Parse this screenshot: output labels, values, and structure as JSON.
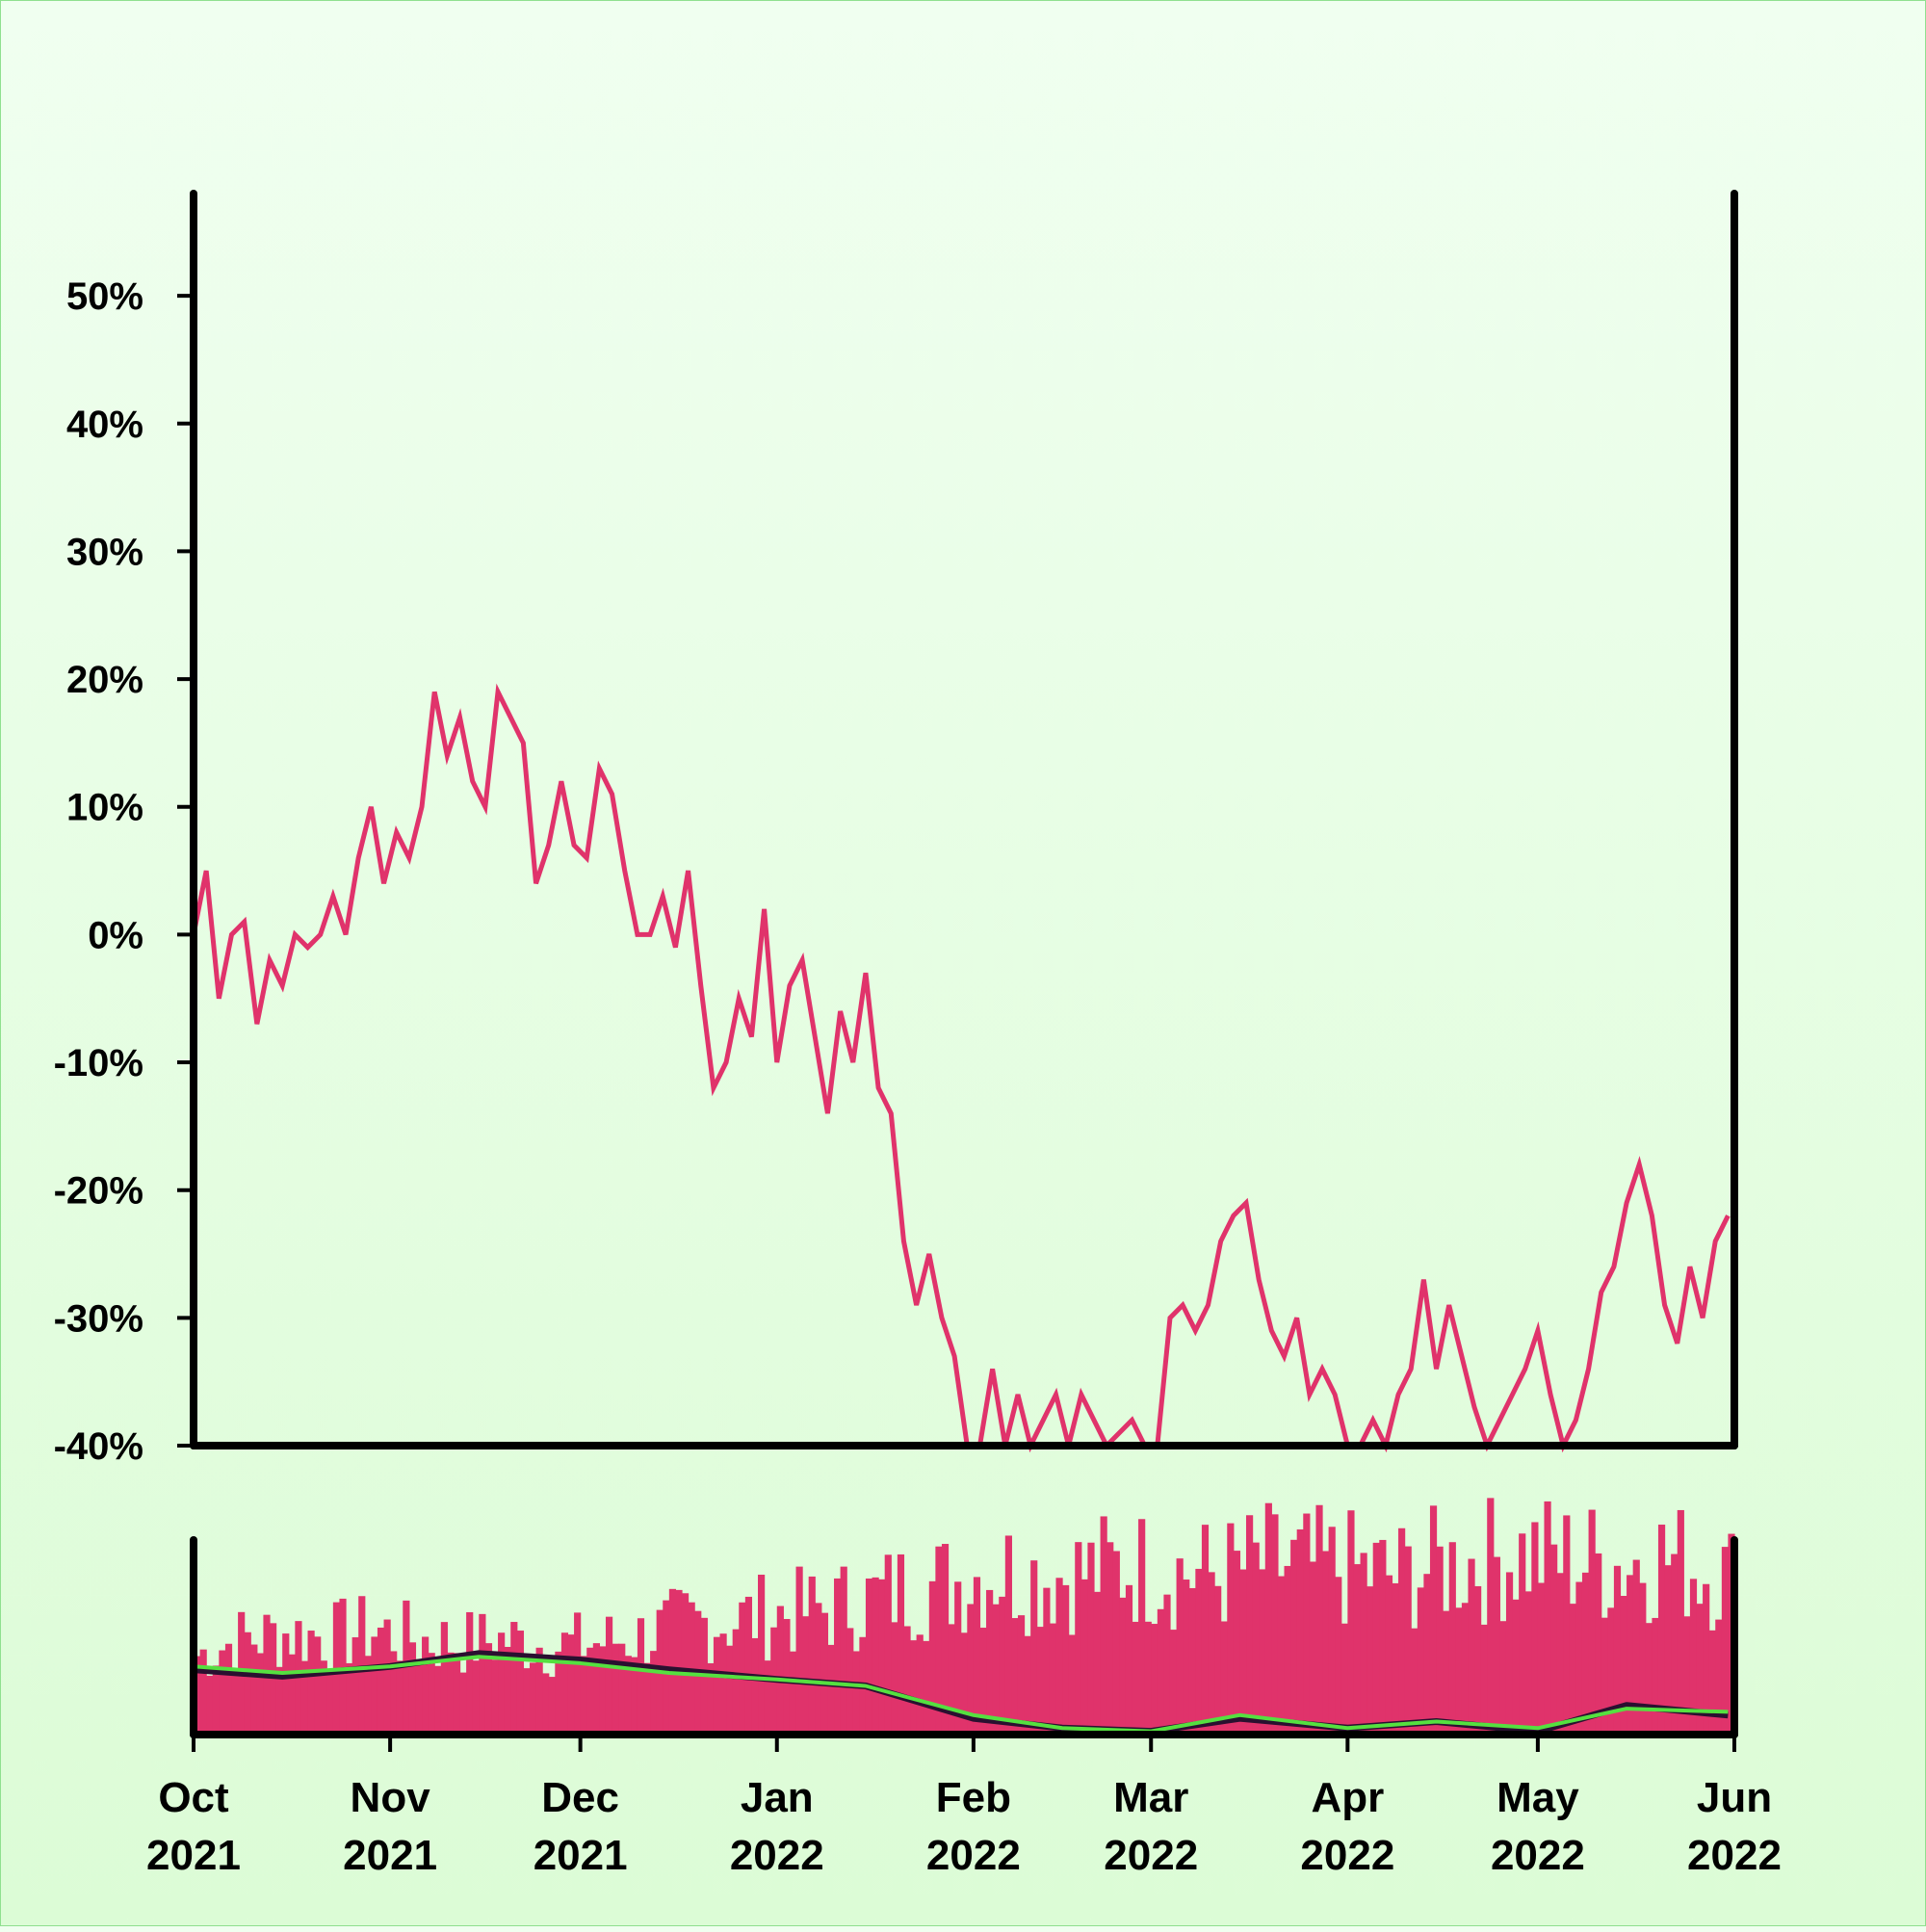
{
  "chart_data": [
    {
      "type": "line",
      "title": "",
      "xlabel": "",
      "ylabel": "",
      "ylim": [
        -40,
        58
      ],
      "yticks": [
        50,
        40,
        30,
        20,
        10,
        0,
        -10,
        -20,
        -30,
        -40
      ],
      "ytick_labels": [
        "50%",
        "40%",
        "30%",
        "20%",
        "10%",
        "0%",
        "-10%",
        "-20%",
        "-30%",
        "-40%"
      ],
      "xtick_labels": [
        [
          "Oct",
          "2021"
        ],
        [
          "Nov",
          "2021"
        ],
        [
          "Dec",
          "2021"
        ],
        [
          "Jan",
          "2022"
        ],
        [
          "Feb",
          "2022"
        ],
        [
          "Mar",
          "2022"
        ],
        [
          "Apr",
          "2022"
        ],
        [
          "May",
          "2022"
        ],
        [
          "Jun",
          "2022"
        ]
      ],
      "xtick_dates": [
        "2021-10-01",
        "2021-11-01",
        "2021-12-01",
        "2022-01-01",
        "2022-02-01",
        "2022-03-01",
        "2022-04-01",
        "2022-05-01",
        "2022-06-01"
      ],
      "color": "#e0336b",
      "series": [
        {
          "points": [
            [
              "2021-10-01",
              0
            ],
            [
              "2021-10-03",
              5
            ],
            [
              "2021-10-05",
              -5
            ],
            [
              "2021-10-07",
              0
            ],
            [
              "2021-10-09",
              1
            ],
            [
              "2021-10-11",
              -7
            ],
            [
              "2021-10-13",
              -2
            ],
            [
              "2021-10-15",
              -4
            ],
            [
              "2021-10-17",
              0
            ],
            [
              "2021-10-19",
              -1
            ],
            [
              "2021-10-21",
              0
            ],
            [
              "2021-10-23",
              3
            ],
            [
              "2021-10-25",
              0
            ],
            [
              "2021-10-27",
              6
            ],
            [
              "2021-10-29",
              10
            ],
            [
              "2021-10-31",
              4
            ],
            [
              "2021-11-02",
              8
            ],
            [
              "2021-11-04",
              6
            ],
            [
              "2021-11-06",
              10
            ],
            [
              "2021-11-08",
              19
            ],
            [
              "2021-11-10",
              14
            ],
            [
              "2021-11-12",
              17
            ],
            [
              "2021-11-14",
              12
            ],
            [
              "2021-11-16",
              10
            ],
            [
              "2021-11-18",
              19
            ],
            [
              "2021-11-20",
              17
            ],
            [
              "2021-11-22",
              15
            ],
            [
              "2021-11-24",
              4
            ],
            [
              "2021-11-26",
              7
            ],
            [
              "2021-11-28",
              12
            ],
            [
              "2021-11-30",
              7
            ],
            [
              "2021-12-02",
              6
            ],
            [
              "2021-12-04",
              13
            ],
            [
              "2021-12-06",
              11
            ],
            [
              "2021-12-08",
              5
            ],
            [
              "2021-12-10",
              0
            ],
            [
              "2021-12-12",
              0
            ],
            [
              "2021-12-14",
              3
            ],
            [
              "2021-12-16",
              -1
            ],
            [
              "2021-12-18",
              5
            ],
            [
              "2021-12-20",
              -4
            ],
            [
              "2021-12-22",
              -12
            ],
            [
              "2021-12-24",
              -10
            ],
            [
              "2021-12-26",
              -5
            ],
            [
              "2021-12-28",
              -8
            ],
            [
              "2021-12-30",
              2
            ],
            [
              "2022-01-01",
              -10
            ],
            [
              "2022-01-03",
              -4
            ],
            [
              "2022-01-05",
              -2
            ],
            [
              "2022-01-07",
              -8
            ],
            [
              "2022-01-09",
              -14
            ],
            [
              "2022-01-11",
              -6
            ],
            [
              "2022-01-13",
              -10
            ],
            [
              "2022-01-15",
              -3
            ],
            [
              "2022-01-17",
              -12
            ],
            [
              "2022-01-19",
              -14
            ],
            [
              "2022-01-21",
              -24
            ],
            [
              "2022-01-23",
              -29
            ],
            [
              "2022-01-25",
              -25
            ],
            [
              "2022-01-27",
              -30
            ],
            [
              "2022-01-29",
              -33
            ],
            [
              "2022-01-31",
              -40
            ],
            [
              "2022-02-02",
              -40
            ],
            [
              "2022-02-04",
              -34
            ],
            [
              "2022-02-06",
              -40
            ],
            [
              "2022-02-08",
              -36
            ],
            [
              "2022-02-10",
              -40
            ],
            [
              "2022-02-12",
              -38
            ],
            [
              "2022-02-14",
              -36
            ],
            [
              "2022-02-16",
              -40
            ],
            [
              "2022-02-18",
              -36
            ],
            [
              "2022-02-20",
              -38
            ],
            [
              "2022-02-22",
              -40
            ],
            [
              "2022-02-24",
              -39
            ],
            [
              "2022-02-26",
              -38
            ],
            [
              "2022-02-28",
              -40
            ],
            [
              "2022-03-02",
              -40
            ],
            [
              "2022-03-04",
              -30
            ],
            [
              "2022-03-06",
              -29
            ],
            [
              "2022-03-08",
              -31
            ],
            [
              "2022-03-10",
              -29
            ],
            [
              "2022-03-12",
              -24
            ],
            [
              "2022-03-14",
              -22
            ],
            [
              "2022-03-16",
              -21
            ],
            [
              "2022-03-18",
              -27
            ],
            [
              "2022-03-20",
              -31
            ],
            [
              "2022-03-22",
              -33
            ],
            [
              "2022-03-24",
              -30
            ],
            [
              "2022-03-26",
              -36
            ],
            [
              "2022-03-28",
              -34
            ],
            [
              "2022-03-30",
              -36
            ],
            [
              "2022-04-01",
              -40
            ],
            [
              "2022-04-03",
              -40
            ],
            [
              "2022-04-05",
              -38
            ],
            [
              "2022-04-07",
              -40
            ],
            [
              "2022-04-09",
              -36
            ],
            [
              "2022-04-11",
              -34
            ],
            [
              "2022-04-13",
              -27
            ],
            [
              "2022-04-15",
              -34
            ],
            [
              "2022-04-17",
              -29
            ],
            [
              "2022-04-19",
              -33
            ],
            [
              "2022-04-21",
              -37
            ],
            [
              "2022-04-23",
              -40
            ],
            [
              "2022-04-25",
              -38
            ],
            [
              "2022-04-27",
              -36
            ],
            [
              "2022-04-29",
              -34
            ],
            [
              "2022-05-01",
              -31
            ],
            [
              "2022-05-03",
              -36
            ],
            [
              "2022-05-05",
              -40
            ],
            [
              "2022-05-07",
              -38
            ],
            [
              "2022-05-09",
              -34
            ],
            [
              "2022-05-11",
              -28
            ],
            [
              "2022-05-13",
              -26
            ],
            [
              "2022-05-15",
              -21
            ],
            [
              "2022-05-17",
              -18
            ],
            [
              "2022-05-19",
              -22
            ],
            [
              "2022-05-21",
              -29
            ],
            [
              "2022-05-23",
              -32
            ],
            [
              "2022-05-25",
              -26
            ],
            [
              "2022-05-27",
              -30
            ],
            [
              "2022-05-29",
              -24
            ],
            [
              "2022-05-31",
              -22
            ]
          ]
        }
      ]
    },
    {
      "type": "bar",
      "title": "",
      "xlabel": "",
      "ylabel": "",
      "bar_color": "#e0336b",
      "line_colors": [
        "#2a1030",
        "#55e040"
      ],
      "bars": [
        [
          "2021-10-01",
          25
        ],
        [
          "2021-10-08",
          30
        ],
        [
          "2021-10-15",
          32
        ],
        [
          "2021-10-22",
          31
        ],
        [
          "2021-10-29",
          33
        ],
        [
          "2021-11-05",
          30
        ],
        [
          "2021-11-12",
          29
        ],
        [
          "2021-11-19",
          30
        ],
        [
          "2021-11-26",
          28
        ],
        [
          "2021-12-03",
          29
        ],
        [
          "2021-12-10",
          31
        ],
        [
          "2021-12-17",
          35
        ],
        [
          "2021-12-24",
          36
        ],
        [
          "2021-12-31",
          38
        ],
        [
          "2022-01-07",
          39
        ],
        [
          "2022-01-14",
          42
        ],
        [
          "2022-01-21",
          46
        ],
        [
          "2022-01-28",
          48
        ],
        [
          "2022-02-04",
          52
        ],
        [
          "2022-02-11",
          50
        ],
        [
          "2022-02-18",
          51
        ],
        [
          "2022-02-25",
          53
        ],
        [
          "2022-03-04",
          52
        ],
        [
          "2022-03-11",
          50
        ],
        [
          "2022-03-18",
          54
        ],
        [
          "2022-03-25",
          53
        ],
        [
          "2022-04-01",
          52
        ],
        [
          "2022-04-08",
          50
        ],
        [
          "2022-04-15",
          53
        ],
        [
          "2022-04-22",
          55
        ],
        [
          "2022-04-29",
          57
        ],
        [
          "2022-05-06",
          55
        ],
        [
          "2022-05-13",
          54
        ],
        [
          "2022-05-20",
          56
        ],
        [
          "2022-05-27",
          52
        ],
        [
          "2022-05-31",
          50
        ]
      ],
      "lines": [
        [
          [
            "2021-10-01",
            20
          ],
          [
            "2021-10-15",
            18
          ],
          [
            "2021-11-01",
            21
          ],
          [
            "2021-11-15",
            25
          ],
          [
            "2021-12-01",
            23
          ],
          [
            "2021-12-15",
            20
          ],
          [
            "2022-01-01",
            17
          ],
          [
            "2022-01-15",
            15
          ],
          [
            "2022-02-01",
            5
          ],
          [
            "2022-02-15",
            2
          ],
          [
            "2022-03-01",
            1
          ],
          [
            "2022-03-15",
            5
          ],
          [
            "2022-04-01",
            2
          ],
          [
            "2022-04-15",
            4
          ],
          [
            "2022-05-01",
            1
          ],
          [
            "2022-05-15",
            9
          ],
          [
            "2022-05-31",
            6
          ]
        ],
        [
          [
            "2021-10-01",
            21
          ],
          [
            "2021-10-15",
            19
          ],
          [
            "2021-11-01",
            21
          ],
          [
            "2021-11-15",
            24
          ],
          [
            "2021-12-01",
            22
          ],
          [
            "2021-12-15",
            19
          ],
          [
            "2022-01-01",
            17
          ],
          [
            "2022-01-15",
            15
          ],
          [
            "2022-02-01",
            6
          ],
          [
            "2022-02-15",
            2
          ],
          [
            "2022-03-01",
            1
          ],
          [
            "2022-03-15",
            6
          ],
          [
            "2022-04-01",
            2
          ],
          [
            "2022-04-15",
            4
          ],
          [
            "2022-05-01",
            2
          ],
          [
            "2022-05-15",
            8
          ],
          [
            "2022-05-31",
            7
          ]
        ]
      ],
      "xtick_dates": [
        "2021-10-01",
        "2021-11-01",
        "2021-12-01",
        "2022-01-01",
        "2022-02-01",
        "2022-03-01",
        "2022-04-01",
        "2022-05-01",
        "2022-06-01"
      ]
    }
  ]
}
